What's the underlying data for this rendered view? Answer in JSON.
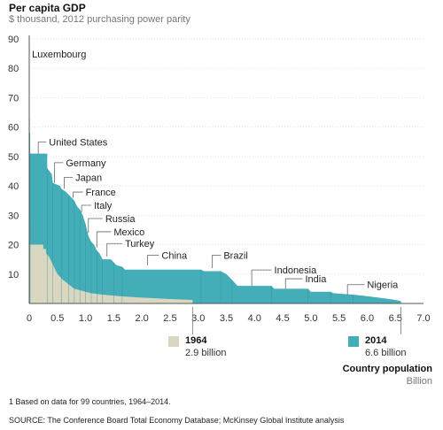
{
  "title": "Per capita GDP",
  "subtitle": "$ thousand, 2012 purchasing power parity",
  "xlabel": "Country population",
  "xunit": "Billion",
  "footnote": "1  Based on data for 99 countries, 1964–2014.",
  "source": "SOURCE:  The Conference Board Total Economy Database; McKinsey Global Institute analysis",
  "legend": [
    {
      "year": "1964",
      "value": "2.9 billion",
      "color": "#d9d6c1"
    },
    {
      "year": "2014",
      "value": "6.6 billion",
      "color": "#43aeb8"
    }
  ],
  "chart_data": {
    "type": "area",
    "xlim": [
      0,
      7.0
    ],
    "ylim": [
      0,
      90
    ],
    "xticks": [
      "0",
      "0.5",
      "1.0",
      "1.5",
      "2.0",
      "2.5",
      "3.0",
      "3.5",
      "4.0",
      "4.5",
      "5.0",
      "5.5",
      "6.0",
      "6.5",
      "7.0"
    ],
    "yticks": [
      "10",
      "20",
      "30",
      "40",
      "50",
      "60",
      "70",
      "80",
      "90"
    ],
    "series": [
      {
        "name": "1964",
        "color": "#d9d6c1",
        "points": [
          [
            0.0,
            27
          ],
          [
            0.01,
            27
          ],
          [
            0.01,
            20
          ],
          [
            0.25,
            20
          ],
          [
            0.25,
            18.5
          ],
          [
            0.3,
            18.5
          ],
          [
            0.3,
            17
          ],
          [
            0.35,
            16
          ],
          [
            0.4,
            14
          ],
          [
            0.45,
            12
          ],
          [
            0.5,
            10
          ],
          [
            0.6,
            8
          ],
          [
            0.7,
            6.5
          ],
          [
            0.8,
            5
          ],
          [
            0.9,
            4.5
          ],
          [
            1.0,
            4
          ],
          [
            1.1,
            3.5
          ],
          [
            1.3,
            3
          ],
          [
            1.6,
            2.5
          ],
          [
            2.0,
            2
          ],
          [
            2.5,
            1.5
          ],
          [
            2.9,
            1.2
          ],
          [
            2.9,
            0
          ]
        ]
      },
      {
        "name": "2014",
        "color": "#43aeb8",
        "points": [
          [
            0.0,
            88
          ],
          [
            0.003,
            88
          ],
          [
            0.003,
            63
          ],
          [
            0.01,
            63
          ],
          [
            0.01,
            58
          ],
          [
            0.015,
            58
          ],
          [
            0.015,
            51
          ],
          [
            0.32,
            51
          ],
          [
            0.32,
            46
          ],
          [
            0.4,
            44
          ],
          [
            0.42,
            41
          ],
          [
            0.55,
            40
          ],
          [
            0.57,
            39
          ],
          [
            0.65,
            38
          ],
          [
            0.7,
            37
          ],
          [
            0.75,
            36
          ],
          [
            0.8,
            35
          ],
          [
            0.85,
            33
          ],
          [
            0.9,
            32
          ],
          [
            0.95,
            30
          ],
          [
            1.0,
            27
          ],
          [
            1.05,
            23
          ],
          [
            1.1,
            21
          ],
          [
            1.15,
            20
          ],
          [
            1.2,
            18
          ],
          [
            1.25,
            17
          ],
          [
            1.3,
            15
          ],
          [
            1.45,
            15
          ],
          [
            1.5,
            14
          ],
          [
            1.55,
            13
          ],
          [
            1.65,
            12.5
          ],
          [
            1.7,
            11.5
          ],
          [
            3.05,
            11.5
          ],
          [
            3.1,
            11
          ],
          [
            3.4,
            11
          ],
          [
            3.5,
            10
          ],
          [
            3.6,
            8
          ],
          [
            3.7,
            6
          ],
          [
            4.3,
            6
          ],
          [
            4.35,
            5
          ],
          [
            4.95,
            5
          ],
          [
            5.0,
            4
          ],
          [
            5.35,
            4
          ],
          [
            5.4,
            3.5
          ],
          [
            5.75,
            3
          ],
          [
            6.0,
            2.5
          ],
          [
            6.2,
            2
          ],
          [
            6.4,
            1.5
          ],
          [
            6.55,
            1
          ],
          [
            6.6,
            0.8
          ],
          [
            6.6,
            0
          ]
        ]
      }
    ],
    "annotations": [
      {
        "label": "Luxembourg",
        "x": 0.003,
        "y": 88,
        "label_x": 0.05,
        "label_y": 84
      },
      {
        "label": "United States",
        "x": 0.16,
        "y": 51,
        "label_x": 0.35,
        "label_y": 54
      },
      {
        "label": "Germany",
        "x": 0.45,
        "y": 41,
        "label_x": 0.65,
        "label_y": 47
      },
      {
        "label": "Japan",
        "x": 0.62,
        "y": 39,
        "label_x": 0.82,
        "label_y": 42
      },
      {
        "label": "France",
        "x": 0.78,
        "y": 36,
        "label_x": 1.0,
        "label_y": 37
      },
      {
        "label": "Italy",
        "x": 0.93,
        "y": 31,
        "label_x": 1.15,
        "label_y": 32.5
      },
      {
        "label": "Russia",
        "x": 1.05,
        "y": 24,
        "label_x": 1.35,
        "label_y": 28
      },
      {
        "label": "Mexico",
        "x": 1.2,
        "y": 19,
        "label_x": 1.5,
        "label_y": 23.5
      },
      {
        "label": "Turkey",
        "x": 1.38,
        "y": 16,
        "label_x": 1.7,
        "label_y": 19.5
      },
      {
        "label": "China",
        "x": 2.1,
        "y": 13,
        "label_x": 2.35,
        "label_y": 15.5
      },
      {
        "label": "Brazil",
        "x": 3.25,
        "y": 12,
        "label_x": 3.45,
        "label_y": 15.5
      },
      {
        "label": "Indonesia",
        "x": 3.95,
        "y": 6,
        "label_x": 4.35,
        "label_y": 10.5
      },
      {
        "label": "India",
        "x": 4.55,
        "y": 5,
        "label_x": 4.9,
        "label_y": 7.5
      },
      {
        "label": "Nigeria",
        "x": 5.65,
        "y": 3,
        "label_x": 6.0,
        "label_y": 5.5
      }
    ]
  }
}
